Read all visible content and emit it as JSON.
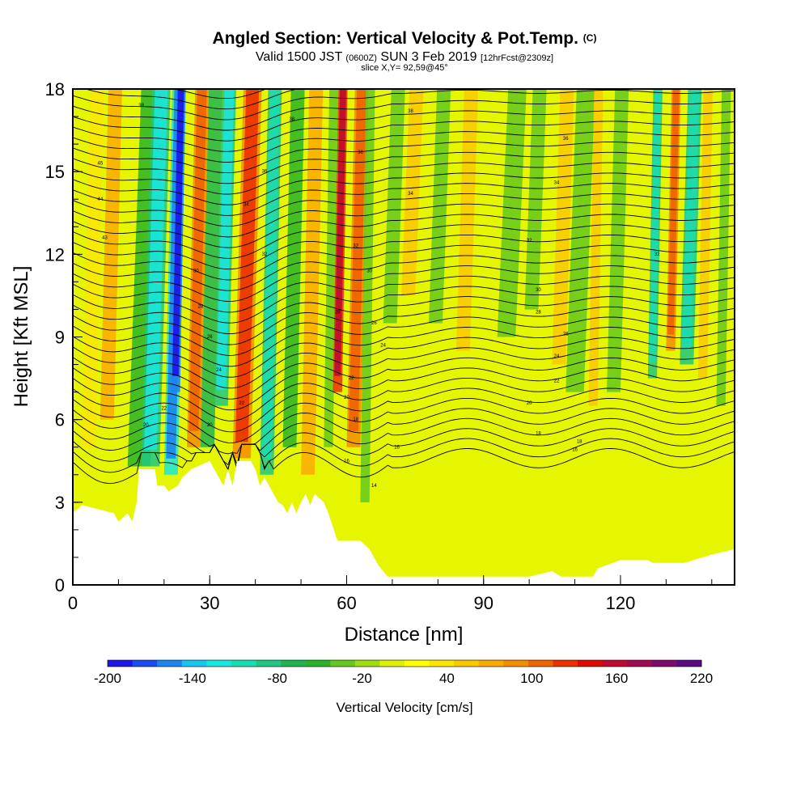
{
  "header": {
    "title_main": "Angled Section: Vertical Velocity & Pot.Temp.",
    "title_mark": "(C)",
    "valid_a": "Valid 1500 JST",
    "valid_utc": "(0600Z)",
    "valid_b": "SUN 3 Feb 2019",
    "valid_fcst": "[12hrFcst@2309z]",
    "slice": "slice X,Y= 92,59@45°"
  },
  "chart_data": {
    "type": "heatmap",
    "title": "Angled Section: Vertical Velocity & Pot.Temp.",
    "xlabel": "Distance [nm]",
    "ylabel": "Height [Kft MSL]",
    "xlim": [
      0,
      145
    ],
    "ylim": [
      0,
      18
    ],
    "x_ticks": [
      "0",
      "30",
      "60",
      "90",
      "120"
    ],
    "x_tick_values": [
      0,
      30,
      60,
      90,
      120
    ],
    "y_ticks": [
      "0",
      "3",
      "6",
      "9",
      "12",
      "15",
      "18"
    ],
    "y_tick_values": [
      0,
      3,
      6,
      9,
      12,
      15,
      18
    ],
    "colorbar": {
      "title": "Vertical Velocity [cm/s]",
      "labels": [
        "-200",
        "-140",
        "-80",
        "-20",
        "40",
        "100",
        "160",
        "220"
      ],
      "label_values": [
        -200,
        -140,
        -80,
        -20,
        40,
        100,
        160,
        220
      ],
      "range": [
        -200,
        220
      ],
      "colors": [
        "#1e14e6",
        "#1b4cf0",
        "#1c86f0",
        "#19c4f0",
        "#19e6dc",
        "#19dcb0",
        "#1ec882",
        "#1eb450",
        "#28b428",
        "#64c81e",
        "#a0dc14",
        "#dcf00a",
        "#ffff00",
        "#fae600",
        "#fac800",
        "#faaa00",
        "#f58c00",
        "#f06400",
        "#eb3200",
        "#dc0a00",
        "#be0a32",
        "#a00a50",
        "#820a6e",
        "#5a0a82"
      ]
    },
    "terrain_kft": [
      [
        0,
        2.6
      ],
      [
        2,
        2.9
      ],
      [
        9,
        2.6
      ],
      [
        10,
        2.3
      ],
      [
        12,
        2.6
      ],
      [
        13,
        2.3
      ],
      [
        14,
        3.0
      ],
      [
        14.5,
        4.2
      ],
      [
        18,
        4.2
      ],
      [
        18.5,
        3.6
      ],
      [
        20,
        3.6
      ],
      [
        21,
        3.4
      ],
      [
        23,
        3.6
      ],
      [
        24,
        3.9
      ],
      [
        26,
        4.2
      ],
      [
        30,
        4.5
      ],
      [
        31,
        4.2
      ],
      [
        32,
        3.9
      ],
      [
        33,
        3.6
      ],
      [
        34,
        4.2
      ],
      [
        35,
        3.6
      ],
      [
        36,
        4.5
      ],
      [
        39,
        4.5
      ],
      [
        40,
        4.2
      ],
      [
        41,
        3.6
      ],
      [
        42,
        3.9
      ],
      [
        43,
        3.6
      ],
      [
        45,
        3.0
      ],
      [
        46,
        2.9
      ],
      [
        47,
        2.6
      ],
      [
        48,
        3.0
      ],
      [
        49,
        2.6
      ],
      [
        50,
        3.0
      ],
      [
        51,
        3.3
      ],
      [
        52,
        2.9
      ],
      [
        53,
        3.3
      ],
      [
        55,
        3.0
      ],
      [
        56,
        2.6
      ],
      [
        58,
        1.6
      ],
      [
        63,
        1.6
      ],
      [
        65,
        1.3
      ],
      [
        66,
        1.0
      ],
      [
        67,
        0.7
      ],
      [
        68,
        0.5
      ],
      [
        69,
        0.3
      ],
      [
        100,
        0.3
      ],
      [
        105,
        0.5
      ],
      [
        107,
        0.3
      ],
      [
        114,
        0.3
      ],
      [
        115,
        0.6
      ],
      [
        120,
        0.9
      ],
      [
        126,
        0.9
      ],
      [
        127,
        0.8
      ],
      [
        134,
        0.8
      ],
      [
        140,
        1.1
      ],
      [
        145,
        1.3
      ]
    ],
    "velocity_bands": [
      {
        "x": 2,
        "w": 3,
        "y0": 5.0,
        "v": 40
      },
      {
        "x": 6,
        "w": 3,
        "y0": 6.0,
        "v": 70
      },
      {
        "x": 12,
        "w": 5,
        "y0": 4.3,
        "v": -60
      },
      {
        "x": 15,
        "w": 4,
        "y0": 4.3,
        "v": -90
      },
      {
        "x": 20,
        "w": 3,
        "y0": 4.0,
        "v": -120
      },
      {
        "x": 21.5,
        "w": 2,
        "y0": 7.0,
        "v": -150
      },
      {
        "x": 25,
        "w": 3,
        "y0": 5.0,
        "v": 80
      },
      {
        "x": 28,
        "w": 3,
        "y0": 5.0,
        "v": -70
      },
      {
        "x": 31,
        "w": 3,
        "y0": 6.5,
        "v": -90
      },
      {
        "x": 35,
        "w": 4,
        "y0": 4.6,
        "v": 90
      },
      {
        "x": 41,
        "w": 3,
        "y0": 4.0,
        "v": -80
      },
      {
        "x": 46,
        "w": 3,
        "y0": 5.0,
        "v": -60
      },
      {
        "x": 50,
        "w": 3,
        "y0": 4.0,
        "v": 70
      },
      {
        "x": 55,
        "w": 2,
        "y0": 5.0,
        "v": -40
      },
      {
        "x": 57,
        "w": 2,
        "y0": 7.0,
        "v": 120
      },
      {
        "x": 60,
        "w": 3,
        "y0": 5.0,
        "v": 80
      },
      {
        "x": 63,
        "w": 2,
        "y0": 3.0,
        "v": -30
      },
      {
        "x": 68,
        "w": 3,
        "y0": 9.5,
        "v": -30
      },
      {
        "x": 72,
        "w": 3,
        "y0": 10.5,
        "v": 60
      },
      {
        "x": 78,
        "w": 3,
        "y0": 9.5,
        "v": -30
      },
      {
        "x": 84,
        "w": 3,
        "y0": 8.5,
        "v": 50
      },
      {
        "x": 93,
        "w": 4,
        "y0": 9.0,
        "v": -30
      },
      {
        "x": 99,
        "w": 3,
        "y0": 10.0,
        "v": -30
      },
      {
        "x": 105,
        "w": 3,
        "y0": 8.0,
        "v": 50
      },
      {
        "x": 108,
        "w": 4,
        "y0": 7.0,
        "v": -30
      },
      {
        "x": 113,
        "w": 2,
        "y0": 6.5,
        "v": 60
      },
      {
        "x": 117,
        "w": 3,
        "y0": 7.0,
        "v": -30
      },
      {
        "x": 126,
        "w": 2,
        "y0": 7.5,
        "v": -80
      },
      {
        "x": 130,
        "w": 2,
        "y0": 8.5,
        "v": 80
      },
      {
        "x": 133,
        "w": 3,
        "y0": 8.0,
        "v": -80
      },
      {
        "x": 137,
        "w": 2,
        "y0": 7.5,
        "v": 60
      },
      {
        "x": 141,
        "w": 2,
        "y0": 6.5,
        "v": -40
      }
    ],
    "isentrope_levels": 38,
    "isentrope_labels": [
      {
        "x": 6,
        "y": 15.3,
        "text": "45"
      },
      {
        "x": 6,
        "y": 14.0,
        "text": "44"
      },
      {
        "x": 7,
        "y": 12.6,
        "text": "43"
      },
      {
        "x": 15,
        "y": 17.4,
        "text": "38"
      },
      {
        "x": 20,
        "y": 6.4,
        "text": "22"
      },
      {
        "x": 16,
        "y": 5.8,
        "text": "20"
      },
      {
        "x": 27,
        "y": 11.4,
        "text": "30"
      },
      {
        "x": 28,
        "y": 10.1,
        "text": "28"
      },
      {
        "x": 30,
        "y": 9.0,
        "text": "26"
      },
      {
        "x": 32,
        "y": 7.8,
        "text": "24"
      },
      {
        "x": 30,
        "y": 5.8,
        "text": "20"
      },
      {
        "x": 37,
        "y": 6.6,
        "text": "22"
      },
      {
        "x": 38,
        "y": 13.8,
        "text": "34"
      },
      {
        "x": 42,
        "y": 12.0,
        "text": "32"
      },
      {
        "x": 42,
        "y": 15.0,
        "text": "36"
      },
      {
        "x": 48,
        "y": 16.9,
        "text": "38"
      },
      {
        "x": 62,
        "y": 12.3,
        "text": "32"
      },
      {
        "x": 63,
        "y": 15.7,
        "text": "36"
      },
      {
        "x": 65,
        "y": 11.4,
        "text": "30"
      },
      {
        "x": 58,
        "y": 9.9,
        "text": "28"
      },
      {
        "x": 66,
        "y": 9.5,
        "text": "26"
      },
      {
        "x": 68,
        "y": 8.7,
        "text": "24"
      },
      {
        "x": 61,
        "y": 7.5,
        "text": "22"
      },
      {
        "x": 60,
        "y": 6.8,
        "text": "20"
      },
      {
        "x": 62,
        "y": 6.0,
        "text": "18"
      },
      {
        "x": 60,
        "y": 4.5,
        "text": "16"
      },
      {
        "x": 66,
        "y": 3.6,
        "text": "14"
      },
      {
        "x": 71,
        "y": 5.0,
        "text": "16"
      },
      {
        "x": 74,
        "y": 17.2,
        "text": "38"
      },
      {
        "x": 74,
        "y": 14.2,
        "text": "34"
      },
      {
        "x": 100,
        "y": 12.5,
        "text": "32"
      },
      {
        "x": 102,
        "y": 10.7,
        "text": "30"
      },
      {
        "x": 102,
        "y": 9.9,
        "text": "28"
      },
      {
        "x": 108,
        "y": 9.1,
        "text": "26"
      },
      {
        "x": 106,
        "y": 8.3,
        "text": "24"
      },
      {
        "x": 106,
        "y": 7.4,
        "text": "22"
      },
      {
        "x": 100,
        "y": 6.6,
        "text": "20"
      },
      {
        "x": 102,
        "y": 5.5,
        "text": "18"
      },
      {
        "x": 110,
        "y": 4.9,
        "text": "16"
      },
      {
        "x": 111,
        "y": 5.2,
        "text": "18"
      },
      {
        "x": 106,
        "y": 14.6,
        "text": "34"
      },
      {
        "x": 108,
        "y": 16.2,
        "text": "36"
      },
      {
        "x": 128,
        "y": 12.0,
        "text": "32"
      }
    ]
  }
}
